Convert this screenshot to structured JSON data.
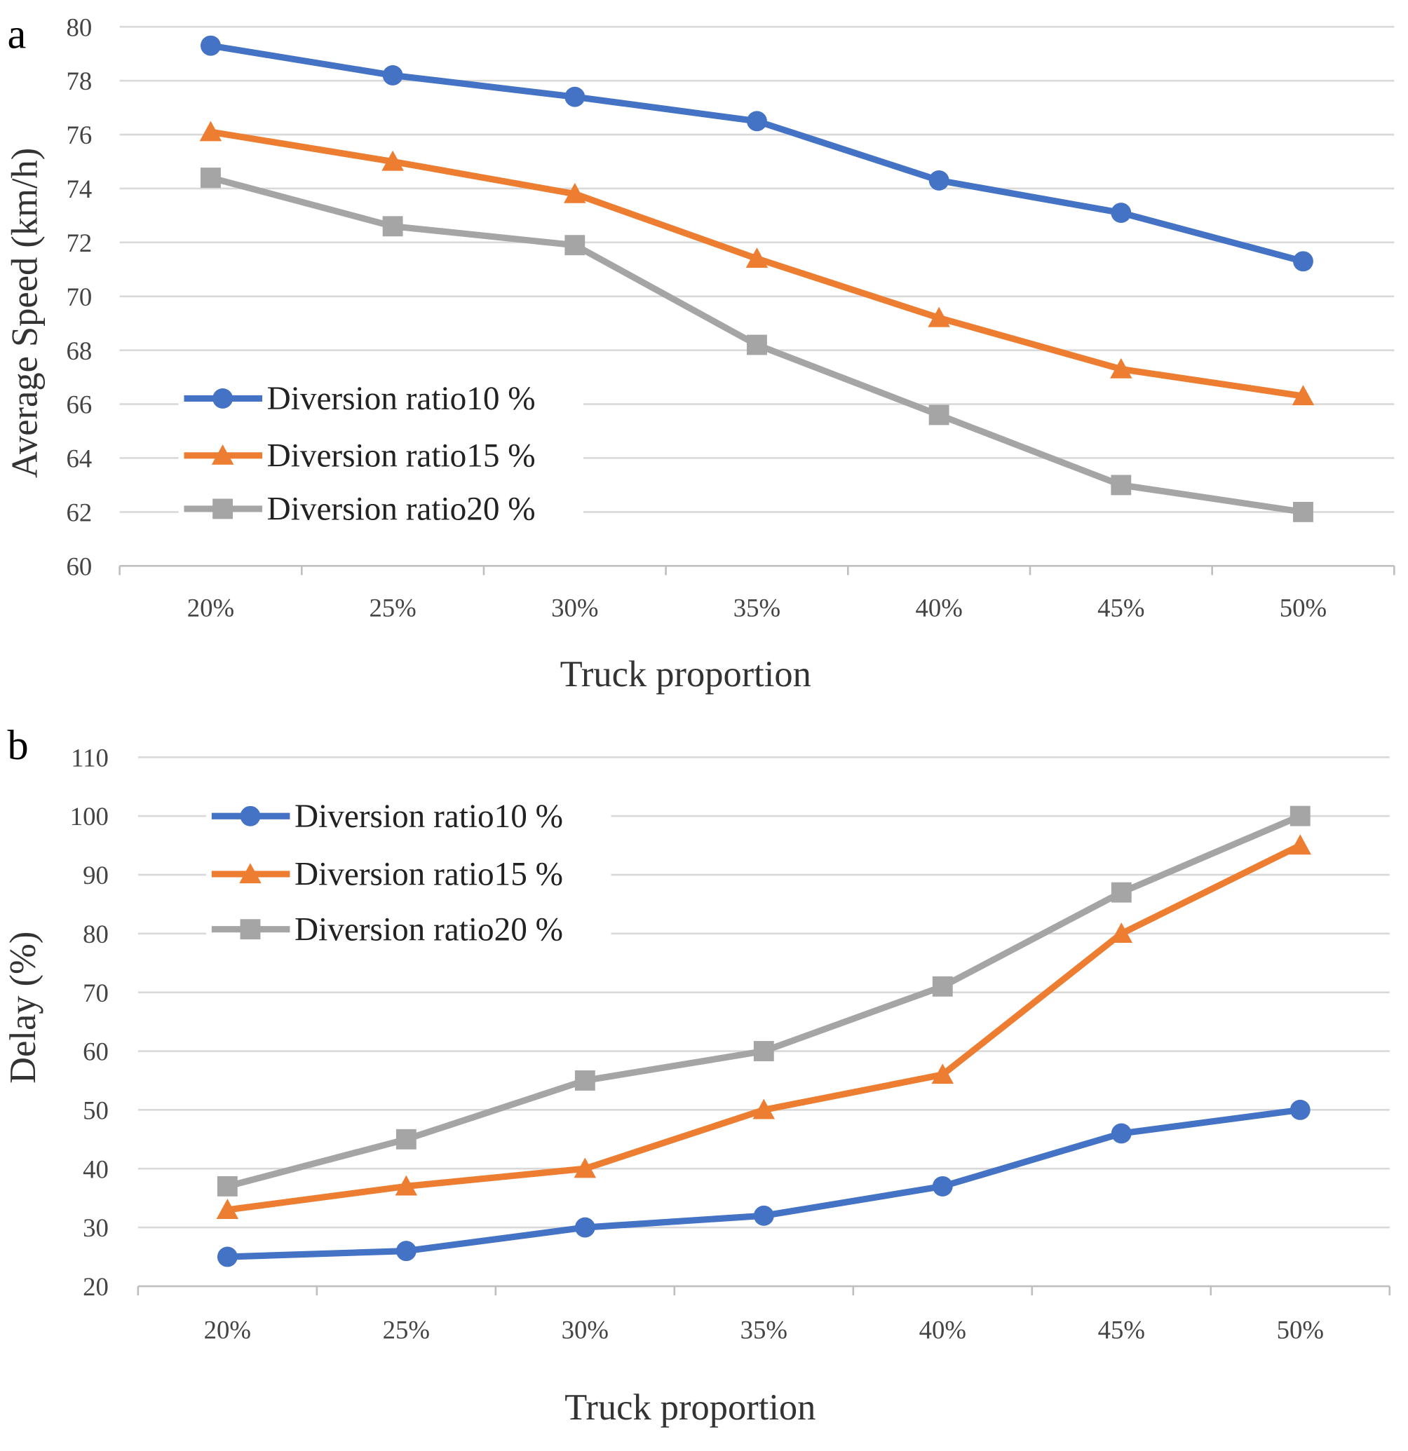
{
  "colors": {
    "series1": "#4472C4",
    "series2": "#ED7D31",
    "series3": "#A5A5A5",
    "grid": "#D9D9D9"
  },
  "chart_data": [
    {
      "type": "line",
      "panel_label": "a",
      "xlabel": "Truck proportion",
      "ylabel": "Average Speed (km/h)",
      "categories": [
        "20%",
        "25%",
        "30%",
        "35%",
        "40%",
        "45%",
        "50%"
      ],
      "ylim": [
        60,
        80
      ],
      "yticks": [
        60,
        62,
        64,
        66,
        68,
        70,
        72,
        74,
        76,
        78,
        80
      ],
      "grid": true,
      "legend": "middle-left",
      "series": [
        {
          "name": "Diversion ratio10 %",
          "marker": "circle",
          "values": [
            79.3,
            78.2,
            77.4,
            76.5,
            74.3,
            73.1,
            71.3
          ]
        },
        {
          "name": "Diversion ratio15 %",
          "marker": "triangle",
          "values": [
            76.1,
            75.0,
            73.8,
            71.4,
            69.2,
            67.3,
            66.3
          ]
        },
        {
          "name": "Diversion ratio20 %",
          "marker": "square",
          "values": [
            74.4,
            72.6,
            71.9,
            68.2,
            65.6,
            63.0,
            62.0
          ]
        }
      ]
    },
    {
      "type": "line",
      "panel_label": "b",
      "xlabel": "Truck proportion",
      "ylabel": "Delay (%)",
      "categories": [
        "20%",
        "25%",
        "30%",
        "35%",
        "40%",
        "45%",
        "50%"
      ],
      "ylim": [
        20,
        110
      ],
      "yticks": [
        20,
        30,
        40,
        50,
        60,
        70,
        80,
        90,
        100,
        110
      ],
      "grid": true,
      "legend": "top-left",
      "series": [
        {
          "name": "Diversion ratio10 %",
          "marker": "circle",
          "values": [
            25,
            26,
            30,
            32,
            37,
            46,
            50
          ]
        },
        {
          "name": "Diversion ratio15 %",
          "marker": "triangle",
          "values": [
            33,
            37,
            40,
            50,
            56,
            80,
            95
          ]
        },
        {
          "name": "Diversion ratio20 %",
          "marker": "square",
          "values": [
            37,
            45,
            55,
            60,
            71,
            87,
            100
          ]
        }
      ]
    }
  ]
}
